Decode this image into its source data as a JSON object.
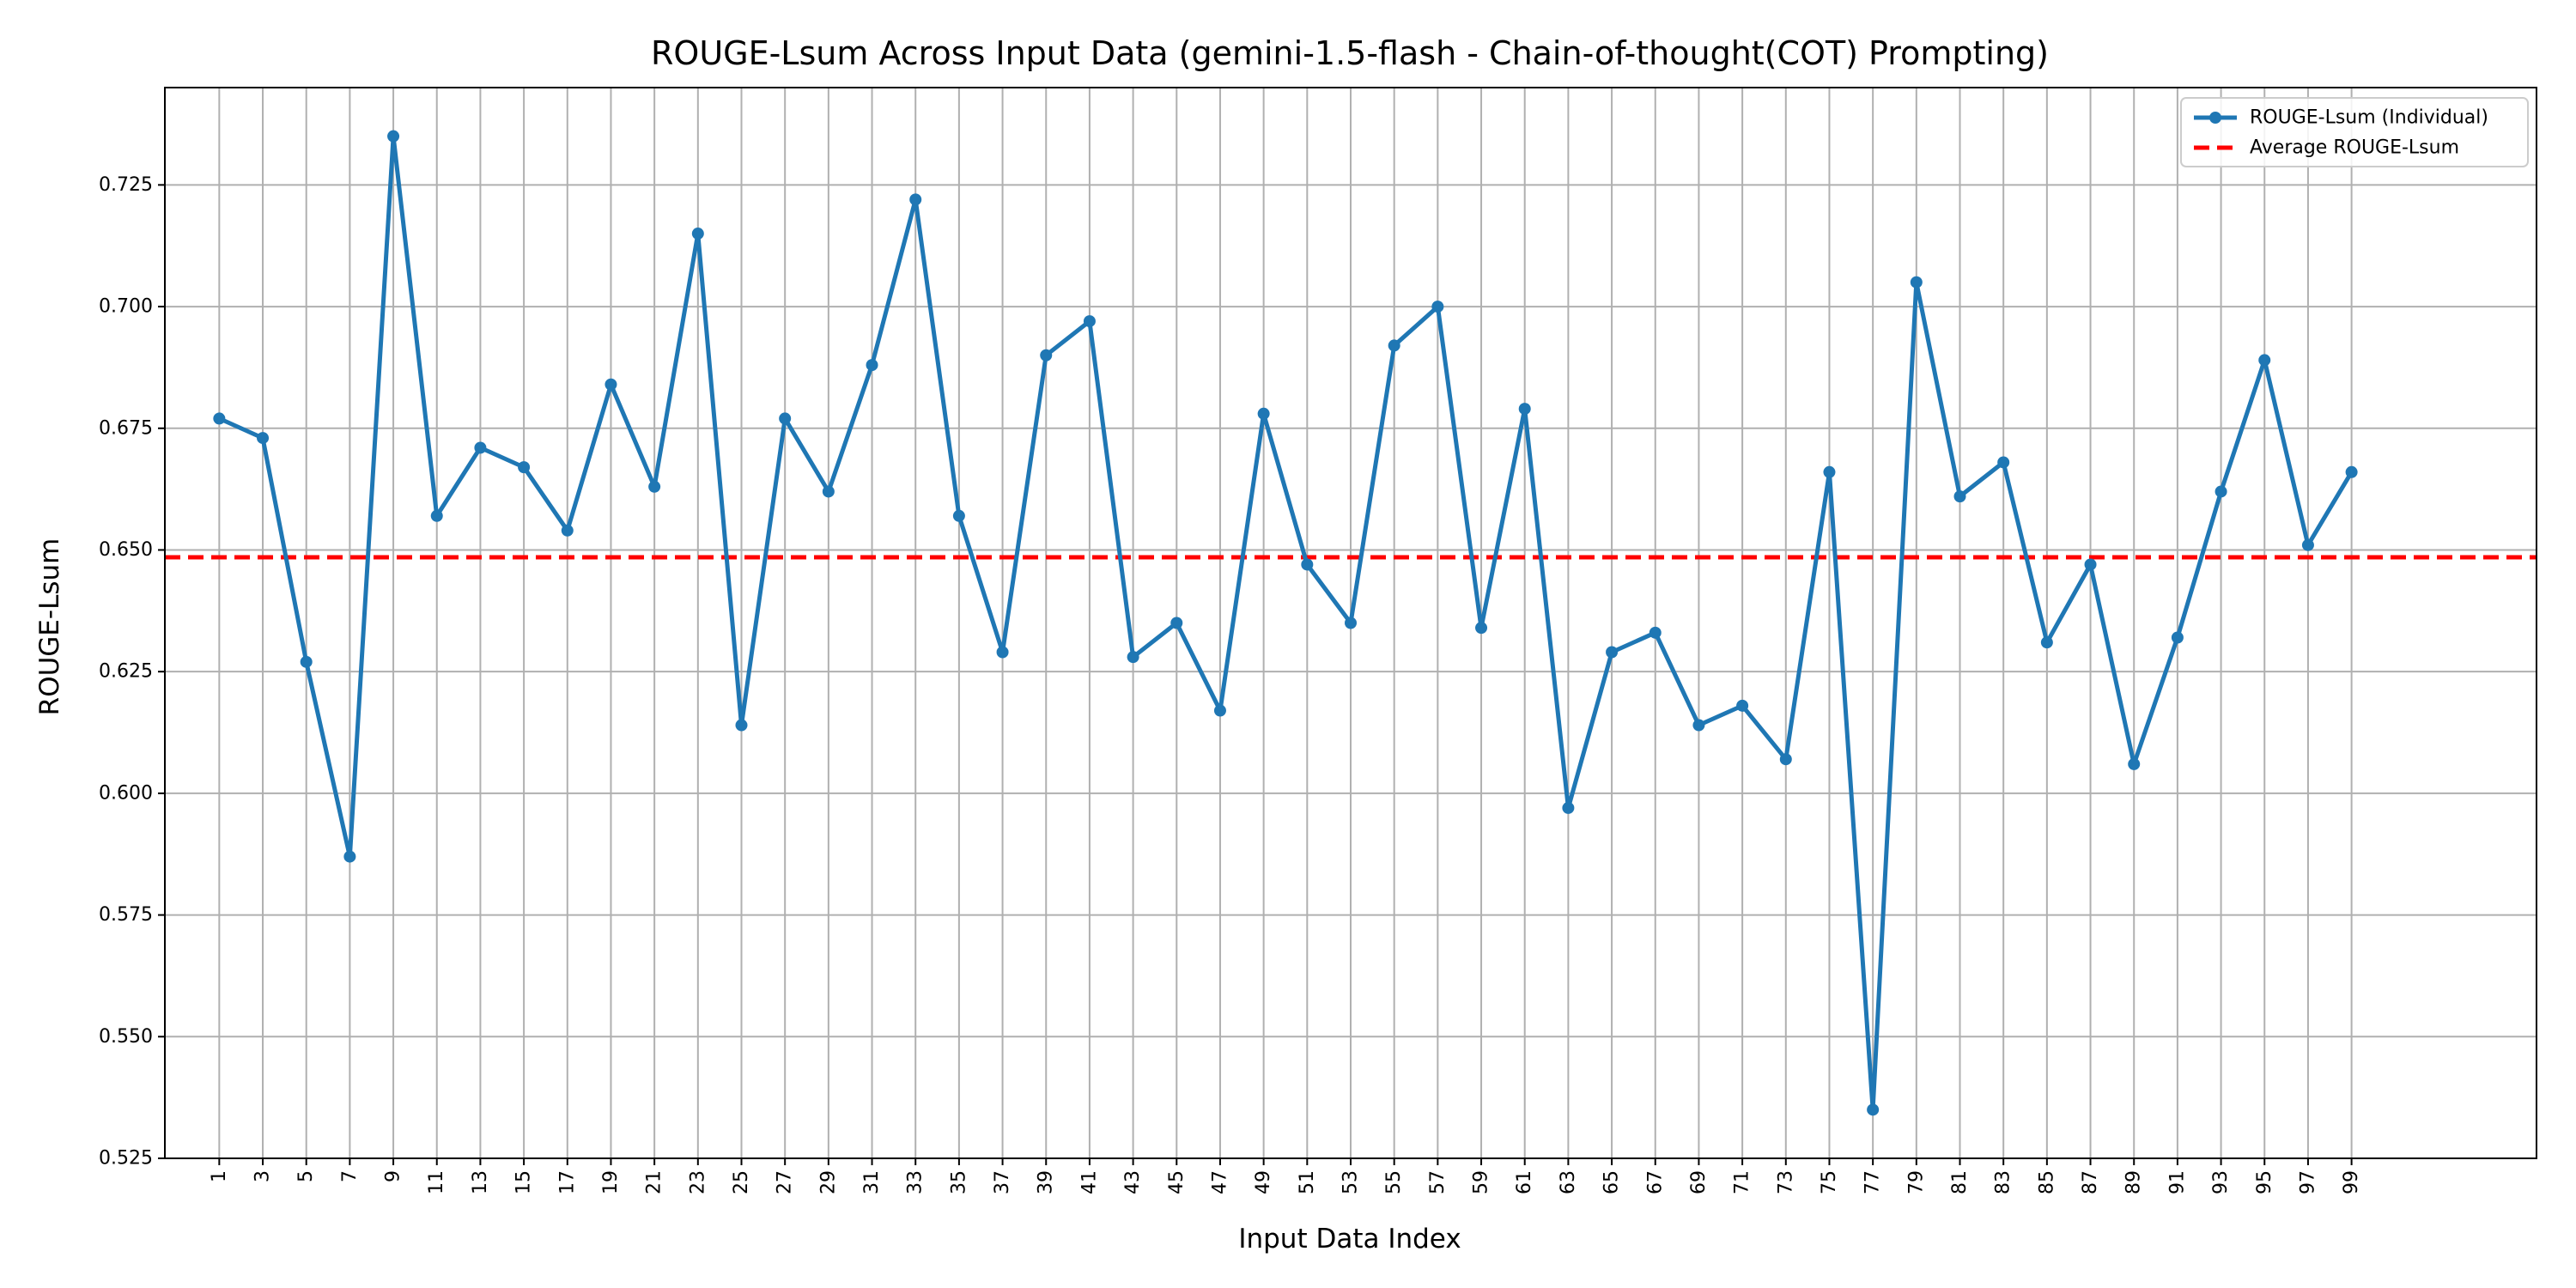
{
  "chart_data": {
    "type": "line",
    "title": "ROUGE-Lsum Across Input Data (gemini-1.5-flash - Chain-of-thought(COT) Prompting)",
    "xlabel": "Input Data Index",
    "ylabel": "ROUGE-Lsum",
    "xlim": [
      -1.5,
      107.5
    ],
    "ylim": [
      0.525,
      0.745
    ],
    "x_ticks": [
      1,
      3,
      5,
      7,
      9,
      11,
      13,
      15,
      17,
      19,
      21,
      23,
      25,
      27,
      29,
      31,
      33,
      35,
      37,
      39,
      41,
      43,
      45,
      47,
      49,
      51,
      53,
      55,
      57,
      59,
      61,
      63,
      65,
      67,
      69,
      71,
      73,
      75,
      77,
      79,
      81,
      83,
      85,
      87,
      89,
      91,
      93,
      95,
      97,
      99
    ],
    "y_ticks": [
      0.525,
      0.55,
      0.575,
      0.6,
      0.625,
      0.65,
      0.675,
      0.7,
      0.725
    ],
    "y_tick_labels": [
      "0.525",
      "0.550",
      "0.575",
      "0.600",
      "0.625",
      "0.650",
      "0.675",
      "0.700",
      "0.725"
    ],
    "grid": true,
    "legend_position": "top-right",
    "series": [
      {
        "name": "ROUGE-Lsum (Individual)",
        "color": "#1f77b4",
        "style": "solid-with-markers",
        "x": [
          1,
          3,
          5,
          7,
          9,
          11,
          13,
          15,
          17,
          19,
          21,
          23,
          25,
          27,
          29,
          31,
          33,
          35,
          37,
          39,
          41,
          43,
          45,
          47,
          49,
          51,
          53,
          55,
          57,
          59,
          61,
          63,
          65,
          67,
          69,
          71,
          73,
          75,
          77,
          79,
          81,
          83,
          85,
          87,
          89,
          91,
          93,
          95,
          97,
          99
        ],
        "values": [
          0.677,
          0.673,
          0.627,
          0.587,
          0.735,
          0.657,
          0.671,
          0.667,
          0.654,
          0.684,
          0.663,
          0.715,
          0.614,
          0.677,
          0.662,
          0.688,
          0.722,
          0.657,
          0.629,
          0.69,
          0.697,
          0.628,
          0.635,
          0.617,
          0.678,
          0.647,
          0.635,
          0.692,
          0.7,
          0.634,
          0.679,
          0.597,
          0.629,
          0.633,
          0.614,
          0.618,
          0.607,
          0.666,
          0.535,
          0.705,
          0.661,
          0.668,
          0.631,
          0.647,
          0.606,
          0.632,
          0.662,
          0.689,
          0.651,
          0.666
        ]
      },
      {
        "name": "Average ROUGE-Lsum",
        "color": "#ff0000",
        "style": "dashed",
        "value": 0.6485
      }
    ]
  }
}
